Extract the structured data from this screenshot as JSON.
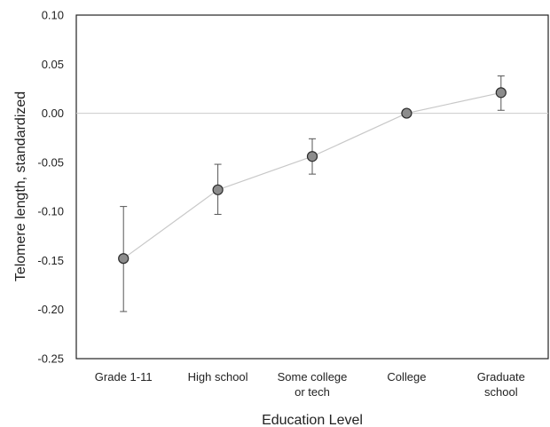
{
  "chart_data": {
    "type": "line",
    "categories": [
      [
        "Grade 1-11"
      ],
      [
        "High school"
      ],
      [
        "Some college",
        "or tech"
      ],
      [
        "College"
      ],
      [
        "Graduate",
        "school"
      ]
    ],
    "values": [
      -0.148,
      -0.078,
      -0.044,
      0.0,
      0.021
    ],
    "error_low": [
      -0.202,
      -0.103,
      -0.062,
      0.0,
      0.003
    ],
    "error_high": [
      -0.095,
      -0.052,
      -0.026,
      0.0,
      0.038
    ],
    "xlabel": "Education Level",
    "ylabel": "Telomere length, standardized",
    "ylim": [
      -0.25,
      0.1
    ],
    "yticks": [
      "0.10",
      "0.05",
      "0.00",
      "-0.05",
      "-0.10",
      "-0.15",
      "-0.20",
      "-0.25"
    ],
    "reference_line": 0.0,
    "grid": false,
    "legend": "none",
    "colors": {
      "marker_fill": "#8c8c8c",
      "marker_stroke": "#2b2b2b",
      "line": "#c8c8c8",
      "error_bar": "#555555",
      "frame": "#222222",
      "reference_line": "#cccccc"
    }
  }
}
